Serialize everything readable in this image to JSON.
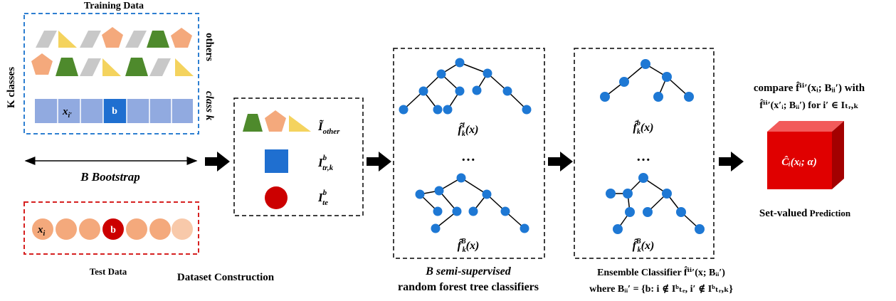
{
  "training": {
    "title": "Training Data",
    "others_label": "others",
    "class_label": "class k",
    "k_classes_label": "K classes",
    "x_label": "x",
    "x_sub": "i′",
    "b_label": "b"
  },
  "bootstrap": {
    "label": "B Bootstrap"
  },
  "test": {
    "title": "Test Data",
    "x_label": "x",
    "x_sub": "i",
    "b_label": "b"
  },
  "dataset": {
    "caption": "Dataset Construction",
    "other_label": "Ĩ",
    "other_sub": "other",
    "tr_label": "I",
    "tr_sup": "b",
    "tr_sub": "tr,k",
    "te_label": "I",
    "te_sup": "b",
    "te_sub": "te"
  },
  "forest": {
    "caption_line1": "B semi-supervised",
    "caption_line2": "random forest tree classifiers",
    "f_top": "f̂",
    "f_top_sup": "1",
    "f_top_sub": "k",
    "f_top_arg": "(x)",
    "ellipsis": "…",
    "f_bottom": "f̂",
    "f_bottom_sup": "B",
    "f_bottom_sub": "k",
    "f_bottom_arg": "(x)"
  },
  "ensemble": {
    "f_top": "f̂",
    "f_top_sup": "b",
    "f_top_sub": "k",
    "f_top_arg": "(x)",
    "ellipsis": "…",
    "f_bottom": "f̂",
    "f_bottom_sup": "B",
    "f_bottom_sub": "k",
    "f_bottom_arg": "(x)",
    "caption_line1": "Ensemble Classifier f̂ⁱⁱ′(x; Bᵢᵢ′)",
    "caption_line2": "where Bᵢᵢ′ = {b: i ∉ Iᵇₜₑ, i′ ∉ Iᵇₜᵣ,ₖ}"
  },
  "prediction": {
    "compare_line1": "compare f̂ⁱⁱ′(xᵢ; Bᵢᵢ′) with",
    "compare_line2": "f̂ⁱⁱ′(x′ᵢ; Bᵢᵢ′) for i′ ∈ Iₜᵣ,ₖ",
    "cube_label": "Ĉᵢ(xᵢ; α)",
    "caption_main": "Set-valued",
    "caption_rest": " Prediction"
  },
  "colors": {
    "blue_dash": "#2e7fd1",
    "red_dash": "#d62020",
    "gray": "#c8c8c8",
    "yellow": "#f4d35e",
    "orange": "#f4a97c",
    "green": "#4e8a2c",
    "light_blue": "#91aae0",
    "blue_cell": "#1f6fd0",
    "node": "#1e78d4",
    "dark_red": "#cc0000",
    "cube_red": "#e00000"
  }
}
